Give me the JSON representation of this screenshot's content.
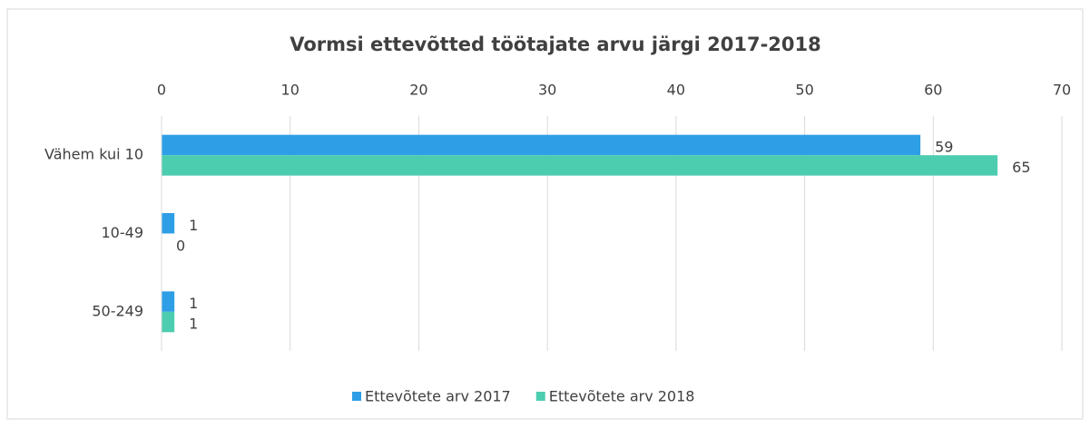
{
  "chart_data": {
    "type": "hbar",
    "title": "Vormsi ettevõtted töötajate arvu järgi 2017-2018",
    "categories": [
      "Vähem kui 10",
      "10-49",
      "50-249"
    ],
    "series": [
      {
        "name": "Ettevõtete arv 2017",
        "color": "#2e9fe6",
        "values": [
          59,
          1,
          1
        ]
      },
      {
        "name": "Ettevõtete arv 2018",
        "color": "#4dcdb0",
        "values": [
          65,
          0,
          1
        ]
      }
    ],
    "xlim": [
      0,
      70
    ],
    "xticks": [
      0,
      10,
      20,
      30,
      40,
      50,
      60,
      70
    ],
    "grid": true,
    "legend": "bottom"
  }
}
